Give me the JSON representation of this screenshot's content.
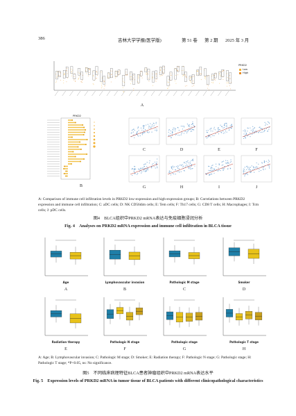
{
  "header": {
    "page": "386",
    "journal": "吉林大学学报(医学版)",
    "volume": "第 51 卷",
    "issue": "第 2 期",
    "date": "2025 年 3 月"
  },
  "figure4": {
    "panel_a_legend": {
      "title": "PRKD2",
      "items": [
        "Low",
        "High"
      ]
    },
    "panel_b_title": "PRKD2",
    "panels": [
      "A",
      "B",
      "C",
      "D",
      "E",
      "F",
      "G",
      "H",
      "I",
      "J"
    ],
    "note": "A: Comparison of immune cell infiltration levels in PRKD2 low-expression and high-expression groups; B: Correlations between PRKD2 expression and immune cell infiltration; C: aDC cells; D: NK CD56dim cells; E: Tem cells; F: Th17 cells; G: CD8 T cells; H: Macrophages; I: Tcm cells; J: pDC cells.",
    "title_cn": "图4　BLCA组织中PRKD2 mRNA表达与免疫细胞浸润分析",
    "title_en": "Fig. 4　Analyses on PRKD2 mRNA expression and immune cell infiltration in BLCA tissue"
  },
  "figure5": {
    "panels": [
      {
        "letter": "A",
        "x_label": "Age"
      },
      {
        "letter": "B",
        "x_label": "Lymphovascular invasion"
      },
      {
        "letter": "C",
        "x_label": "Pathologic M stage"
      },
      {
        "letter": "D",
        "x_label": "Smoker"
      },
      {
        "letter": "E",
        "x_label": "Radiation therapy"
      },
      {
        "letter": "F",
        "x_label": "Pathologic N stage"
      },
      {
        "letter": "G",
        "x_label": "Pathologic stage"
      },
      {
        "letter": "H",
        "x_label": "Pathologic T stage"
      }
    ],
    "note": "A: Age; B: Lymphovascular invasion; C: Pathologic M stage; D: Smoker; E: Radiation therapy; F: Pathologic N stage; G: Pathologic stage; H: Pathologic T stage; *P<0.05, ns: No significance.",
    "title_cn": "图5　不同临床病理特征BLCA患者肿瘤组织中PRKD2 mRNA表达水平",
    "title_en": "Fig. 5　Expression levels of PRKD2 mRNA in tumor tissue of BLCA patients with different clinicopathological characteristics"
  }
}
